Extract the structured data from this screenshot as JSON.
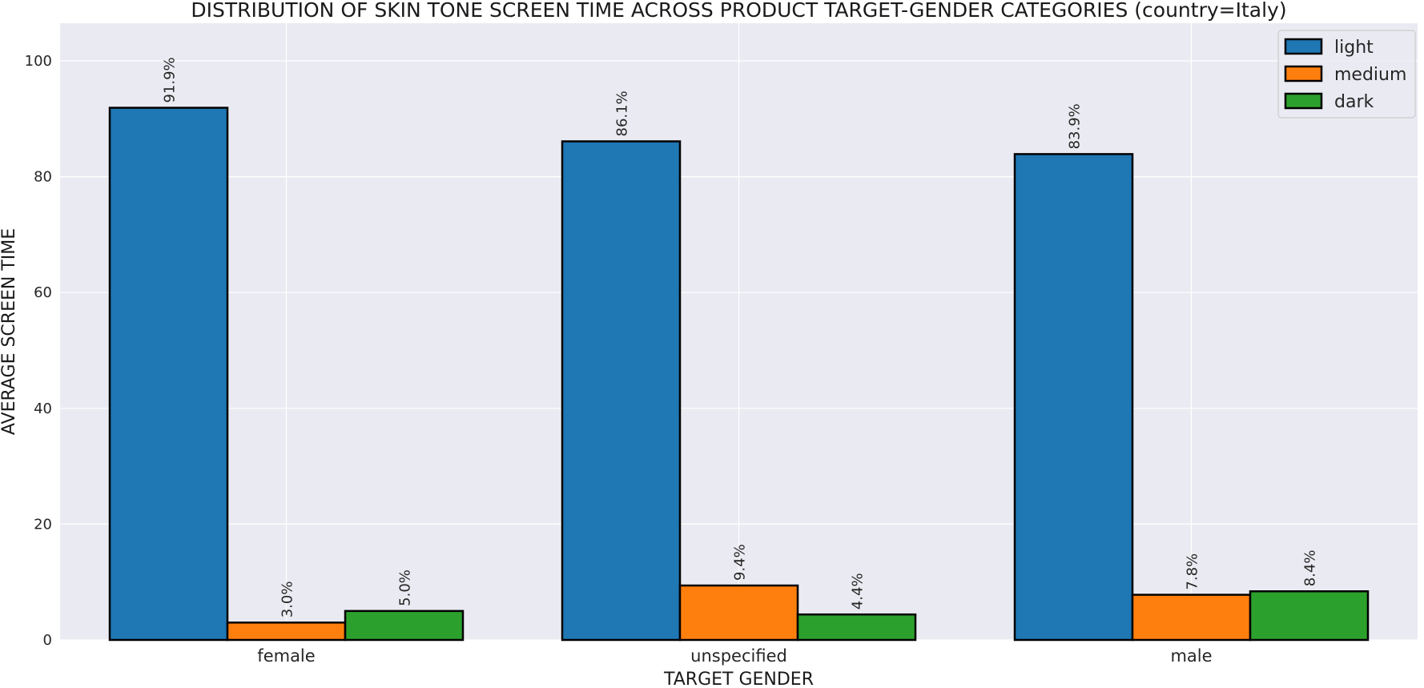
{
  "chart_data": {
    "type": "bar",
    "title": "DISTRIBUTION OF SKIN TONE SCREEN TIME ACROSS PRODUCT TARGET-GENDER CATEGORIES (country=Italy)",
    "xlabel": "TARGET GENDER",
    "ylabel": "AVERAGE SCREEN TIME",
    "categories": [
      "female",
      "unspecified",
      "male"
    ],
    "series": [
      {
        "name": "light",
        "color": "#1f77b4",
        "values": [
          91.9,
          86.1,
          83.9
        ],
        "labels": [
          "91.9%",
          "86.1%",
          "83.9%"
        ]
      },
      {
        "name": "medium",
        "color": "#ff7f0e",
        "values": [
          3.0,
          9.4,
          7.8
        ],
        "labels": [
          "3.0%",
          "9.4%",
          "7.8%"
        ]
      },
      {
        "name": "dark",
        "color": "#2ca02c",
        "values": [
          5.0,
          4.4,
          8.4
        ],
        "labels": [
          "5.0%",
          "4.4%",
          "8.4%"
        ]
      }
    ],
    "ylim": [
      0,
      106.5
    ],
    "yticks": [
      0,
      20,
      40,
      60,
      80,
      100
    ],
    "grid": true,
    "legend_position": "top-right",
    "background": "#eaeaf2",
    "grid_color": "#ffffff",
    "bar_edge_color": "#000000"
  }
}
